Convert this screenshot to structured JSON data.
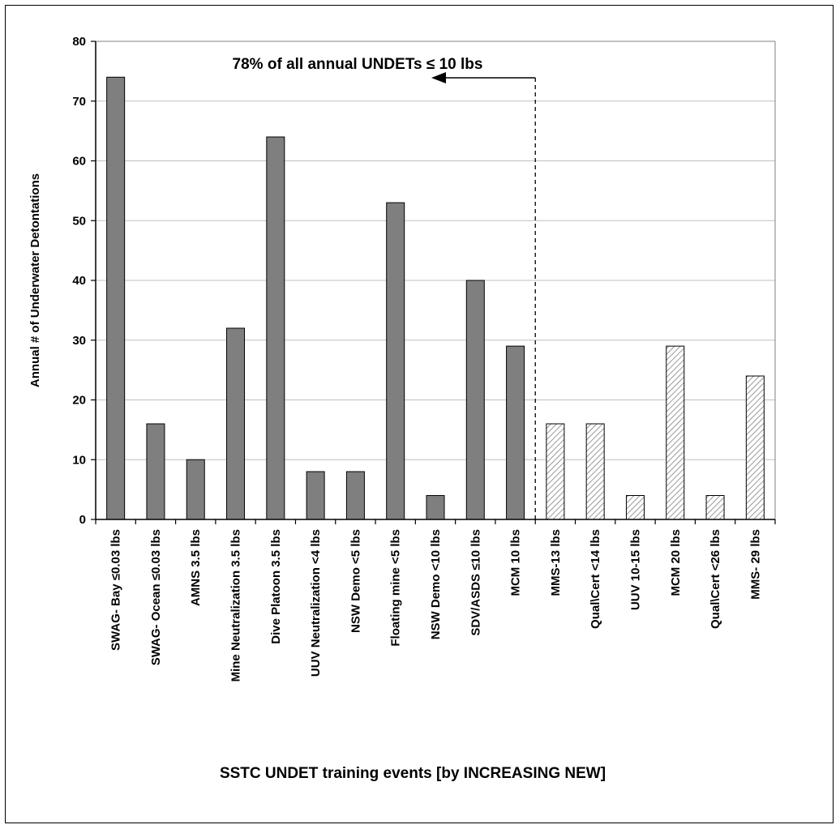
{
  "chart_data": {
    "type": "bar",
    "title": "",
    "xlabel": "SSTC UNDET training events [by INCREASING NEW]",
    "ylabel": "Annual # of Underwater Detontations",
    "ylim": [
      0,
      80
    ],
    "yticks": [
      0,
      10,
      20,
      30,
      40,
      50,
      60,
      70,
      80
    ],
    "grid": "horizontal",
    "categories": [
      "SWAG- Bay ≤0.03 lbs",
      "SWAG- Ocean ≤0.03 lbs",
      "AMNS 3.5 lbs",
      "Mine Neutralization 3.5 lbs",
      "Dive Platoon 3.5 lbs",
      "UUV Neutralization <4 lbs",
      "NSW Demo <5 lbs",
      "Floating mine <5 lbs",
      "NSW Demo <10 lbs",
      "SDV/ASDS ≤10 lbs",
      "MCM 10 lbs",
      "MMS-13 lbs",
      "Qual\\Cert <14 lbs",
      "UUV 10-15 lbs",
      "MCM 20 lbs",
      "Qual\\Cert <26 lbs",
      "MMS- 29 lbs"
    ],
    "values": [
      74,
      16,
      10,
      32,
      64,
      8,
      8,
      53,
      4,
      40,
      29,
      16,
      16,
      4,
      29,
      4,
      24
    ],
    "fill_styles": [
      "solid",
      "solid",
      "solid",
      "solid",
      "solid",
      "solid",
      "solid",
      "solid",
      "solid",
      "solid",
      "solid",
      "hatched",
      "hatched",
      "hatched",
      "hatched",
      "hatched",
      "hatched"
    ],
    "colors": {
      "solid": "#7f7f7f",
      "hatched": "#ffffff",
      "hatch_line": "#808080",
      "grid": "#c0c0c0",
      "edge": "#000000"
    },
    "annotation": {
      "text": "78% of all annual UNDETs ≤ 10 lbs",
      "arrow": "left",
      "divider_after_category": "MCM 10 lbs",
      "divider_style": "dashed"
    }
  }
}
